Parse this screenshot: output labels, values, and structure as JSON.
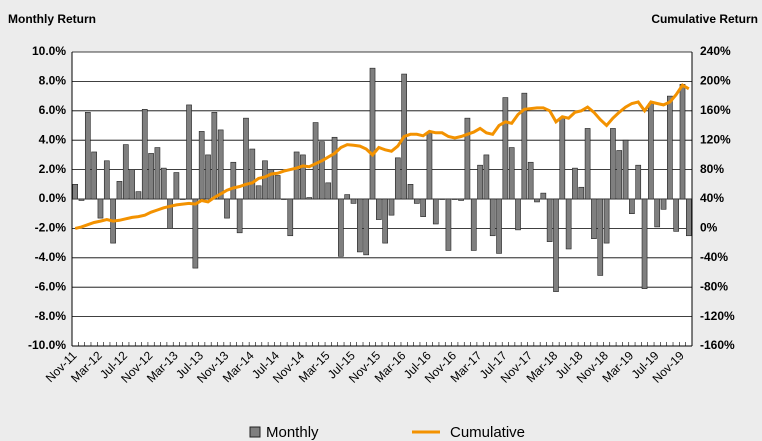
{
  "chart_data": {
    "type": "bar",
    "y_title": "Monthly Return",
    "y2_title": "Cumulative Return",
    "categories": [
      "Nov-11",
      null,
      null,
      null,
      "Mar-12",
      null,
      null,
      null,
      "Jul-12",
      null,
      null,
      null,
      "Nov-12",
      null,
      null,
      null,
      "Mar-13",
      null,
      null,
      null,
      "Jul-13",
      null,
      null,
      null,
      "Nov-13",
      null,
      null,
      null,
      "Mar-14",
      null,
      null,
      null,
      "Jul-14",
      null,
      null,
      null,
      "Nov-14",
      null,
      null,
      null,
      "Mar-15",
      null,
      null,
      null,
      "Jul-15",
      null,
      null,
      null,
      "Nov-15",
      null,
      null,
      null,
      "Mar-16",
      null,
      null,
      null,
      "Jul-16",
      null,
      null,
      null,
      "Nov-16",
      null,
      null,
      null,
      "Mar-17",
      null,
      null,
      null,
      "Jul-17",
      null,
      null,
      null,
      "Nov-17",
      null,
      null,
      null,
      "Mar-18",
      null,
      null,
      null,
      "Jul-18",
      null,
      null,
      null,
      "Nov-18",
      null,
      null,
      null,
      "Mar-19",
      null,
      null,
      null,
      "Jul-19",
      null,
      null,
      null,
      "Nov-19",
      null
    ],
    "series": [
      {
        "name": "Monthly",
        "type": "bar",
        "color": "#7f7f7f",
        "values": [
          1.0,
          -0.1,
          5.9,
          3.2,
          -1.3,
          2.6,
          -3.0,
          1.2,
          3.7,
          2.0,
          0.5,
          6.1,
          3.1,
          3.5,
          2.1,
          -2.0,
          1.8,
          0.0,
          6.4,
          -4.7,
          4.6,
          3.0,
          5.9,
          4.7,
          -1.3,
          2.5,
          -2.3,
          5.5,
          3.4,
          0.9,
          2.6,
          2.0,
          1.6,
          0.0,
          -2.5,
          3.2,
          3.0,
          0.1,
          5.2,
          3.9,
          1.1,
          4.2,
          -3.9,
          0.3,
          -0.3,
          -3.6,
          -3.8,
          8.9,
          -1.4,
          -3.0,
          -1.1,
          2.8,
          8.5,
          1.0,
          -0.3,
          -1.2,
          4.5,
          -1.7,
          0.0,
          -3.5,
          0.0,
          -0.1,
          5.5,
          -3.5,
          2.3,
          3.0,
          -2.5,
          -3.7,
          6.9,
          3.5,
          -2.1,
          7.2,
          2.5,
          -0.2,
          0.4,
          -2.9,
          -6.3,
          5.5,
          -3.4,
          2.1,
          0.8,
          4.8,
          -2.7,
          -5.2,
          -3.0,
          4.8,
          3.3,
          4.0,
          -1.0,
          2.3,
          -6.1,
          6.5,
          -1.9,
          -0.7,
          7.0,
          -2.2,
          7.8,
          -2.5
        ]
      },
      {
        "name": "Cumulative",
        "type": "line",
        "axis": "y2",
        "color": "#f39200",
        "values": [
          0,
          2,
          5,
          8,
          10,
          12,
          10,
          11,
          13,
          15,
          16,
          18,
          22,
          25,
          28,
          30,
          32,
          33,
          34,
          33,
          38,
          36,
          42,
          47,
          52,
          55,
          57,
          60,
          62,
          68,
          70,
          74,
          75,
          78,
          80,
          82,
          85,
          84,
          88,
          92,
          97,
          102,
          110,
          114,
          113,
          112,
          108,
          100,
          110,
          107,
          105,
          112,
          125,
          128,
          128,
          126,
          132,
          130,
          130,
          125,
          123,
          125,
          128,
          131,
          136,
          130,
          128,
          140,
          145,
          143,
          155,
          162,
          163,
          164,
          164,
          160,
          145,
          152,
          150,
          158,
          160,
          165,
          158,
          148,
          140,
          150,
          158,
          165,
          170,
          172,
          160,
          172,
          170,
          168,
          172,
          182,
          195,
          190
        ]
      }
    ],
    "ylim": [
      -10,
      10
    ],
    "yticks": [
      {
        "value": -10,
        "label": "-10.0%"
      },
      {
        "value": -8,
        "label": "-8.0%"
      },
      {
        "value": -6,
        "label": "-6.0%"
      },
      {
        "value": -4,
        "label": "-4.0%"
      },
      {
        "value": -2,
        "label": "-2.0%"
      },
      {
        "value": 0,
        "label": "0.0%"
      },
      {
        "value": 2,
        "label": "2.0%"
      },
      {
        "value": 4,
        "label": "4.0%"
      },
      {
        "value": 6,
        "label": "6.0%"
      },
      {
        "value": 8,
        "label": "8.0%"
      },
      {
        "value": 10,
        "label": "10.0%"
      }
    ],
    "y2lim": [
      -160,
      240
    ],
    "y2ticks": [
      {
        "value": -160,
        "label": "-160%"
      },
      {
        "value": -120,
        "label": "-120%"
      },
      {
        "value": -80,
        "label": "-80%"
      },
      {
        "value": -40,
        "label": "-40%"
      },
      {
        "value": 0,
        "label": "0%"
      },
      {
        "value": 40,
        "label": "40%"
      },
      {
        "value": 80,
        "label": "80%"
      },
      {
        "value": 120,
        "label": "120%"
      },
      {
        "value": 160,
        "label": "160%"
      },
      {
        "value": 200,
        "label": "200%"
      },
      {
        "value": 240,
        "label": "240%"
      }
    ],
    "grid": true
  }
}
